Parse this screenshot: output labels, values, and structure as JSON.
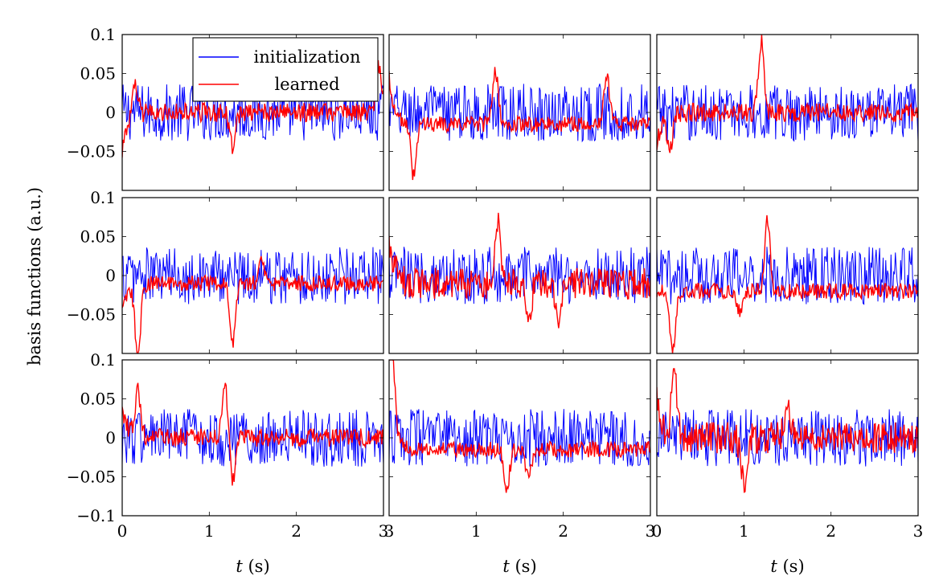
{
  "chart_data": {
    "type": "line",
    "layout": "3x3 grid of subplots",
    "ylabel": "basis functions (a.u.)",
    "xlabel_var": "t",
    "xlabel_unit": " (s)",
    "xlim": [
      0,
      3
    ],
    "ylim": [
      -0.1,
      0.1
    ],
    "xticks": [
      "0",
      "1",
      "2",
      "3"
    ],
    "xticks_panel_right": [
      "3",
      "1",
      "2",
      "3"
    ],
    "xticks_panel_right_first": "0",
    "yticks": [
      "0.1",
      "0.05",
      "0",
      "−0.05",
      "−0.1"
    ],
    "grid": false,
    "legend": {
      "placement": "top-right of first panel",
      "entries": [
        "initialization",
        "learned"
      ]
    },
    "colors": {
      "initialization": "#0000ff",
      "learned": "#ff0000"
    },
    "samples_per_series": 300,
    "initialization_amplitude": 0.037,
    "panels": [
      {
        "learned_start": -0.05,
        "learned_bias": 0.0,
        "learned_noise": 0.012,
        "features": [
          {
            "t": 0.15,
            "value": 0.035
          },
          {
            "t": 1.27,
            "value": -0.045
          },
          {
            "t": 2.95,
            "value": 0.06
          }
        ]
      },
      {
        "learned_start": 0.048,
        "learned_bias": -0.015,
        "learned_noise": 0.01,
        "features": [
          {
            "t": 0.28,
            "value": -0.08
          },
          {
            "t": 1.22,
            "value": 0.055
          },
          {
            "t": 2.5,
            "value": 0.045
          }
        ]
      },
      {
        "learned_start": -0.045,
        "learned_bias": 0.0,
        "learned_noise": 0.012,
        "features": [
          {
            "t": 0.15,
            "value": -0.045
          },
          {
            "t": 1.2,
            "value": 0.09
          }
        ]
      },
      {
        "learned_start": -0.05,
        "learned_bias": -0.01,
        "learned_noise": 0.01,
        "features": [
          {
            "t": 0.18,
            "value": -0.1
          },
          {
            "t": 1.27,
            "value": -0.085
          },
          {
            "t": 1.6,
            "value": 0.02
          }
        ]
      },
      {
        "learned_start": 0.05,
        "learned_bias": -0.01,
        "learned_noise": 0.02,
        "features": [
          {
            "t": 1.25,
            "value": 0.062
          },
          {
            "t": 1.6,
            "value": -0.06
          },
          {
            "t": 1.95,
            "value": -0.06
          }
        ]
      },
      {
        "learned_start": -0.02,
        "learned_bias": -0.02,
        "learned_noise": 0.01,
        "features": [
          {
            "t": 0.18,
            "value": -0.1
          },
          {
            "t": 1.27,
            "value": 0.07
          },
          {
            "t": 0.95,
            "value": -0.045
          }
        ]
      },
      {
        "learned_start": 0.035,
        "learned_bias": 0.0,
        "learned_noise": 0.012,
        "features": [
          {
            "t": 0.18,
            "value": 0.06
          },
          {
            "t": 1.18,
            "value": 0.073
          },
          {
            "t": 1.27,
            "value": -0.055
          }
        ]
      },
      {
        "learned_start": 0.08,
        "learned_bias": -0.015,
        "learned_noise": 0.01,
        "features": [
          {
            "t": 0.03,
            "value": 0.08
          },
          {
            "t": 1.35,
            "value": -0.065
          },
          {
            "t": 1.6,
            "value": -0.05
          }
        ]
      },
      {
        "learned_start": 0.05,
        "learned_bias": 0.0,
        "learned_noise": 0.02,
        "features": [
          {
            "t": 0.2,
            "value": 0.077
          },
          {
            "t": 1.0,
            "value": -0.058
          },
          {
            "t": 1.5,
            "value": 0.045
          }
        ]
      }
    ]
  }
}
